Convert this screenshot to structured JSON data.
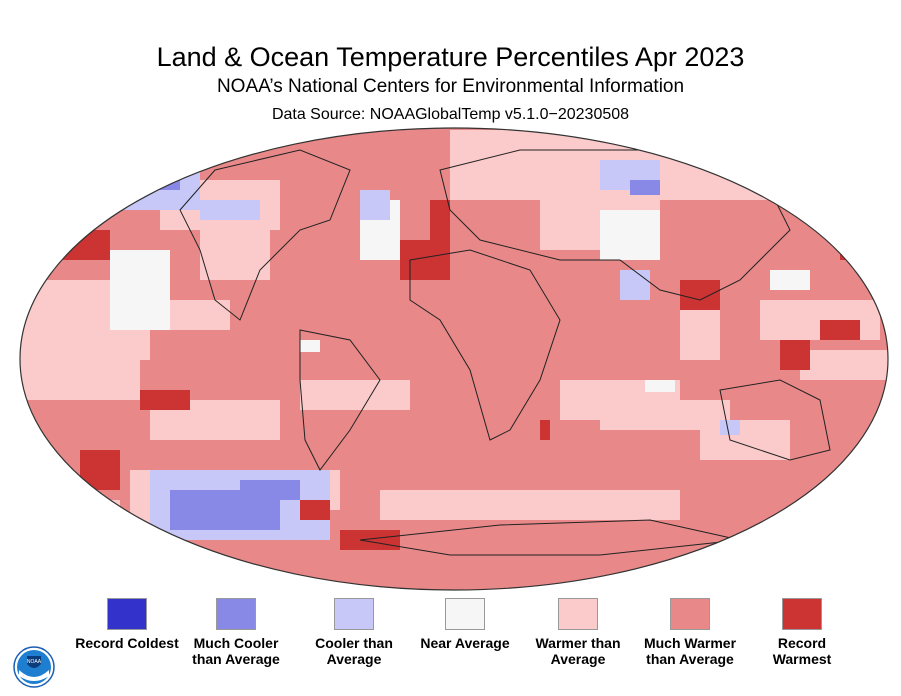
{
  "header": {
    "title": "Land & Ocean Temperature Percentiles Apr 2023",
    "subtitle": "NOAA’s National Centers for Environmental Information",
    "source": "Data Source: NOAAGlobalTemp v5.1.0−20230508"
  },
  "map": {
    "projection": "Robinson",
    "dominant_category": "Much Warmer than Average"
  },
  "legend": [
    {
      "label": "Record Coldest",
      "color": "#3333cc"
    },
    {
      "label": "Much Cooler than Average",
      "color": "#8888e6"
    },
    {
      "label": "Cooler than Average",
      "color": "#c8c8f8"
    },
    {
      "label": "Near Average",
      "color": "#f6f6f6"
    },
    {
      "label": "Warmer than Average",
      "color": "#fbcaca"
    },
    {
      "label": "Much Warmer than Average",
      "color": "#e88888"
    },
    {
      "label": "Record Warmest",
      "color": "#cc3333"
    }
  ],
  "logo": {
    "text": "NOAA"
  }
}
